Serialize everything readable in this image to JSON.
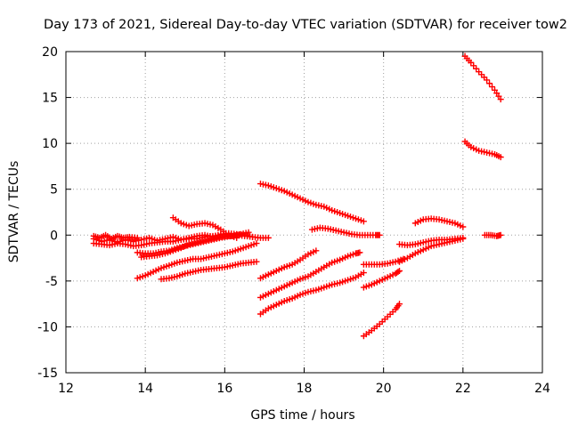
{
  "chart_data": {
    "type": "scatter",
    "title": "Day 173 of 2021, Sidereal Day-to-day VTEC variation (SDTVAR) for receiver tow2",
    "xlabel": "GPS time / hours",
    "ylabel": "SDTVAR / TECUs",
    "xlim": [
      12,
      24
    ],
    "ylim": [
      -15,
      20
    ],
    "xticks": [
      "12",
      "14",
      "16",
      "18",
      "20",
      "22",
      "24"
    ],
    "yticks": [
      "-15",
      "-10",
      "-5",
      "0",
      "5",
      "10",
      "15",
      "20"
    ],
    "grid": true,
    "marker": "plus",
    "color": "#ff0000",
    "series": [
      {
        "points": [
          [
            12.7,
            -0.4
          ],
          [
            12.9,
            -0.7
          ],
          [
            13.1,
            -0.5
          ],
          [
            13.3,
            -0.8
          ],
          [
            13.5,
            -0.5
          ],
          [
            13.7,
            -0.7
          ],
          [
            13.9,
            -0.5
          ],
          [
            14.1,
            -0.3
          ],
          [
            14.3,
            -0.6
          ],
          [
            14.5,
            -0.4
          ],
          [
            14.7,
            -0.2
          ],
          [
            14.9,
            -0.5
          ],
          [
            15.1,
            -0.3
          ],
          [
            15.3,
            -0.1
          ],
          [
            15.5,
            0.0
          ],
          [
            15.7,
            -0.2
          ],
          [
            15.9,
            0.1
          ],
          [
            16.1,
            0.2
          ],
          [
            16.3,
            0.1
          ],
          [
            16.5,
            0.0
          ],
          [
            16.7,
            -0.2
          ],
          [
            16.9,
            -0.3
          ],
          [
            17.1,
            -0.3
          ]
        ]
      },
      {
        "points": [
          [
            12.7,
            -0.9
          ],
          [
            12.9,
            -1.0
          ],
          [
            13.1,
            -1.1
          ],
          [
            13.3,
            -0.9
          ],
          [
            13.5,
            -1.0
          ],
          [
            13.7,
            -1.2
          ],
          [
            13.9,
            -1.1
          ],
          [
            14.1,
            -0.9
          ],
          [
            14.3,
            -0.8
          ],
          [
            14.5,
            -0.7
          ],
          [
            14.7,
            -0.7
          ],
          [
            14.9,
            -0.5
          ],
          [
            15.1,
            -0.4
          ],
          [
            15.3,
            -0.4
          ],
          [
            15.5,
            -0.2
          ],
          [
            15.7,
            -0.1
          ],
          [
            15.9,
            0.0
          ],
          [
            16.1,
            0.1
          ]
        ]
      },
      {
        "points": [
          [
            12.7,
            -0.1
          ],
          [
            12.85,
            -0.3
          ],
          [
            13.0,
            0.0
          ],
          [
            13.15,
            -0.4
          ],
          [
            13.3,
            -0.1
          ],
          [
            13.45,
            -0.3
          ],
          [
            13.6,
            -0.2
          ],
          [
            13.8,
            -0.3
          ]
        ]
      },
      {
        "points": [
          [
            13.8,
            -1.9
          ],
          [
            14.0,
            -2.0
          ],
          [
            14.2,
            -2.0
          ],
          [
            14.4,
            -1.8
          ],
          [
            14.6,
            -1.7
          ],
          [
            14.8,
            -1.4
          ],
          [
            15.0,
            -1.2
          ],
          [
            15.2,
            -1.0
          ],
          [
            15.4,
            -0.8
          ],
          [
            15.6,
            -0.6
          ],
          [
            15.8,
            -0.4
          ],
          [
            16.0,
            -0.2
          ],
          [
            16.2,
            -0.1
          ],
          [
            16.4,
            0.1
          ],
          [
            16.6,
            0.3
          ]
        ]
      },
      {
        "points": [
          [
            13.9,
            -2.4
          ],
          [
            14.1,
            -2.3
          ],
          [
            14.3,
            -2.2
          ],
          [
            14.5,
            -2.0
          ],
          [
            14.7,
            -1.7
          ],
          [
            14.9,
            -1.4
          ],
          [
            15.1,
            -1.0
          ],
          [
            15.3,
            -0.8
          ],
          [
            15.5,
            -0.6
          ],
          [
            15.7,
            -0.4
          ],
          [
            15.9,
            -0.2
          ],
          [
            16.1,
            -0.1
          ],
          [
            16.3,
            0.0
          ],
          [
            16.5,
            -0.1
          ],
          [
            16.7,
            -0.2
          ]
        ]
      },
      {
        "points": [
          [
            14.7,
            1.9
          ],
          [
            14.9,
            1.3
          ],
          [
            15.1,
            1.0
          ],
          [
            15.3,
            1.2
          ],
          [
            15.5,
            1.3
          ],
          [
            15.7,
            1.1
          ],
          [
            15.9,
            0.6
          ],
          [
            16.1,
            0.0
          ],
          [
            16.3,
            -0.3
          ]
        ]
      },
      {
        "points": [
          [
            13.8,
            -4.7
          ],
          [
            14.0,
            -4.4
          ],
          [
            14.2,
            -4.0
          ],
          [
            14.4,
            -3.6
          ],
          [
            14.6,
            -3.3
          ],
          [
            14.8,
            -3.0
          ],
          [
            15.0,
            -2.8
          ],
          [
            15.2,
            -2.6
          ],
          [
            15.4,
            -2.6
          ],
          [
            15.6,
            -2.4
          ],
          [
            15.8,
            -2.2
          ],
          [
            16.0,
            -2.0
          ],
          [
            16.2,
            -1.8
          ],
          [
            16.4,
            -1.5
          ],
          [
            16.6,
            -1.2
          ],
          [
            16.8,
            -0.9
          ]
        ]
      },
      {
        "points": [
          [
            14.4,
            -4.8
          ],
          [
            14.6,
            -4.7
          ],
          [
            14.8,
            -4.5
          ],
          [
            15.0,
            -4.2
          ],
          [
            15.2,
            -4.0
          ],
          [
            15.4,
            -3.8
          ],
          [
            15.6,
            -3.7
          ],
          [
            15.8,
            -3.6
          ],
          [
            16.0,
            -3.5
          ],
          [
            16.2,
            -3.3
          ],
          [
            16.4,
            -3.1
          ],
          [
            16.6,
            -3.0
          ],
          [
            16.8,
            -2.9
          ]
        ]
      },
      {
        "points": [
          [
            16.9,
            5.6
          ],
          [
            17.1,
            5.4
          ],
          [
            17.3,
            5.1
          ],
          [
            17.5,
            4.8
          ],
          [
            17.7,
            4.4
          ],
          [
            17.9,
            4.0
          ],
          [
            18.1,
            3.6
          ],
          [
            18.3,
            3.3
          ],
          [
            18.5,
            3.1
          ],
          [
            18.7,
            2.7
          ],
          [
            18.9,
            2.4
          ],
          [
            19.1,
            2.1
          ],
          [
            19.3,
            1.8
          ],
          [
            19.5,
            1.5
          ]
        ]
      },
      {
        "points": [
          [
            18.2,
            0.6
          ],
          [
            18.4,
            0.8
          ],
          [
            18.6,
            0.7
          ],
          [
            18.8,
            0.5
          ],
          [
            19.0,
            0.3
          ],
          [
            19.2,
            0.1
          ],
          [
            19.4,
            0.0
          ],
          [
            19.6,
            0.0
          ],
          [
            19.8,
            0.0
          ],
          [
            19.9,
            0.0
          ]
        ]
      },
      {
        "points": [
          [
            16.9,
            -4.7
          ],
          [
            17.1,
            -4.3
          ],
          [
            17.3,
            -3.9
          ],
          [
            17.5,
            -3.5
          ],
          [
            17.7,
            -3.2
          ],
          [
            17.9,
            -2.7
          ],
          [
            18.1,
            -2.1
          ],
          [
            18.3,
            -1.7
          ]
        ]
      },
      {
        "points": [
          [
            16.9,
            -6.8
          ],
          [
            17.1,
            -6.4
          ],
          [
            17.3,
            -6.0
          ],
          [
            17.5,
            -5.6
          ],
          [
            17.7,
            -5.2
          ],
          [
            17.9,
            -4.8
          ],
          [
            18.1,
            -4.5
          ],
          [
            18.3,
            -4.0
          ],
          [
            18.5,
            -3.5
          ],
          [
            18.7,
            -3.0
          ],
          [
            18.9,
            -2.7
          ],
          [
            19.1,
            -2.3
          ],
          [
            19.3,
            -2.0
          ],
          [
            19.4,
            -1.9
          ]
        ]
      },
      {
        "points": [
          [
            16.9,
            -8.6
          ],
          [
            17.1,
            -8.0
          ],
          [
            17.3,
            -7.6
          ],
          [
            17.5,
            -7.2
          ],
          [
            17.7,
            -6.9
          ],
          [
            17.9,
            -6.5
          ],
          [
            18.1,
            -6.2
          ],
          [
            18.3,
            -6.0
          ],
          [
            18.5,
            -5.7
          ],
          [
            18.7,
            -5.4
          ],
          [
            18.9,
            -5.2
          ],
          [
            19.1,
            -4.9
          ],
          [
            19.3,
            -4.6
          ],
          [
            19.5,
            -4.1
          ]
        ]
      },
      {
        "points": [
          [
            19.5,
            -3.2
          ],
          [
            19.7,
            -3.2
          ],
          [
            19.9,
            -3.2
          ],
          [
            20.1,
            -3.1
          ],
          [
            20.3,
            -2.9
          ],
          [
            20.5,
            -2.6
          ]
        ]
      },
      {
        "points": [
          [
            19.5,
            -5.7
          ],
          [
            19.7,
            -5.4
          ],
          [
            19.9,
            -5.0
          ],
          [
            20.1,
            -4.6
          ],
          [
            20.3,
            -4.2
          ],
          [
            20.4,
            -3.9
          ]
        ]
      },
      {
        "points": [
          [
            19.5,
            -11.0
          ],
          [
            19.7,
            -10.4
          ],
          [
            19.9,
            -9.7
          ],
          [
            20.1,
            -8.9
          ],
          [
            20.3,
            -8.1
          ],
          [
            20.4,
            -7.5
          ]
        ]
      },
      {
        "points": [
          [
            20.4,
            -2.9
          ],
          [
            20.6,
            -2.5
          ],
          [
            20.8,
            -2.0
          ],
          [
            21.0,
            -1.6
          ],
          [
            21.2,
            -1.2
          ],
          [
            21.4,
            -1.0
          ],
          [
            21.6,
            -0.8
          ],
          [
            21.8,
            -0.6
          ],
          [
            22.0,
            -0.4
          ]
        ]
      },
      {
        "points": [
          [
            20.4,
            -1.0
          ],
          [
            20.6,
            -1.1
          ],
          [
            20.8,
            -1.0
          ],
          [
            21.0,
            -0.8
          ],
          [
            21.2,
            -0.6
          ],
          [
            21.4,
            -0.5
          ],
          [
            21.6,
            -0.5
          ],
          [
            21.8,
            -0.4
          ],
          [
            22.0,
            -0.3
          ]
        ]
      },
      {
        "points": [
          [
            20.8,
            1.3
          ],
          [
            21.0,
            1.7
          ],
          [
            21.2,
            1.8
          ],
          [
            21.4,
            1.7
          ],
          [
            21.6,
            1.5
          ],
          [
            21.8,
            1.3
          ],
          [
            22.0,
            0.9
          ]
        ]
      },
      {
        "points": [
          [
            22.55,
            0.0
          ],
          [
            22.7,
            0.0
          ],
          [
            22.85,
            -0.1
          ],
          [
            22.95,
            0.0
          ]
        ]
      },
      {
        "points": [
          [
            22.05,
            10.2
          ],
          [
            22.2,
            9.6
          ],
          [
            22.4,
            9.2
          ],
          [
            22.6,
            9.0
          ],
          [
            22.8,
            8.8
          ],
          [
            22.95,
            8.5
          ]
        ]
      },
      {
        "points": [
          [
            22.05,
            19.5
          ],
          [
            22.2,
            18.8
          ],
          [
            22.4,
            17.8
          ],
          [
            22.6,
            16.9
          ],
          [
            22.8,
            15.8
          ],
          [
            22.95,
            14.8
          ]
        ]
      }
    ]
  }
}
